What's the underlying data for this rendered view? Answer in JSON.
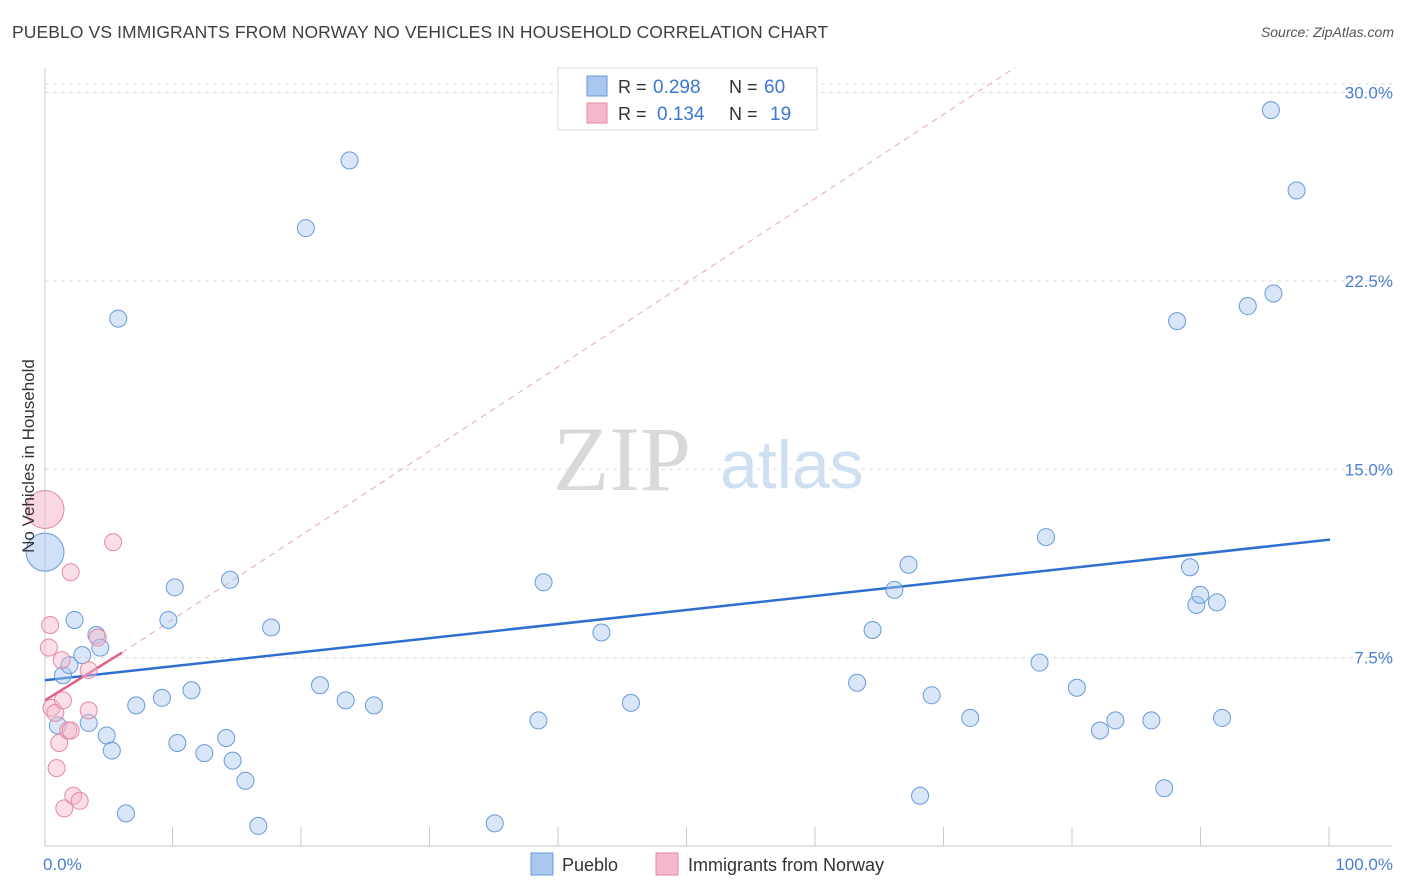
{
  "title": "PUEBLO VS IMMIGRANTS FROM NORWAY NO VEHICLES IN HOUSEHOLD CORRELATION CHART",
  "source": "Source: ZipAtlas.com",
  "watermark": {
    "part1": "ZIP",
    "part2": "atlas"
  },
  "legend_top": [
    {
      "r_label": "R =",
      "r_value": "0.298",
      "n_label": "N =",
      "n_value": "60",
      "color": "#a9c8f0"
    },
    {
      "r_label": "R =",
      "r_value": "0.134",
      "n_label": "N =",
      "n_value": "19",
      "color": "#f5b8cb"
    }
  ],
  "chart_data": {
    "type": "scatter",
    "ylabel": "No Vehicles in Household",
    "xlabel": "",
    "xlim": [
      0,
      100
    ],
    "ylim": [
      0,
      30.5
    ],
    "x_tick_labels": [
      {
        "value": 0,
        "label": "0.0%"
      },
      {
        "value": 100,
        "label": "100.0%"
      }
    ],
    "x_minor_ticks": [
      10,
      20,
      30,
      40,
      50,
      60,
      70,
      80,
      90,
      100
    ],
    "y_ticks": [
      {
        "value": 7.5,
        "label": "7.5%"
      },
      {
        "value": 15.0,
        "label": "15.0%"
      },
      {
        "value": 22.5,
        "label": "22.5%"
      },
      {
        "value": 30.0,
        "label": "30.0%"
      }
    ],
    "series": [
      {
        "name": "Pueblo",
        "color": "#a9c8f0",
        "stroke": "#6a9ad8",
        "points": [
          [
            0.0,
            11.7,
            "big"
          ],
          [
            1.0,
            4.8
          ],
          [
            1.4,
            6.8
          ],
          [
            1.9,
            7.2
          ],
          [
            2.3,
            9.0
          ],
          [
            2.9,
            7.6
          ],
          [
            3.4,
            4.9
          ],
          [
            4.0,
            8.4
          ],
          [
            4.3,
            7.9
          ],
          [
            4.8,
            4.4
          ],
          [
            5.2,
            3.8
          ],
          [
            5.7,
            21.0
          ],
          [
            6.3,
            1.3
          ],
          [
            7.1,
            5.6
          ],
          [
            9.1,
            5.9
          ],
          [
            9.6,
            9.0
          ],
          [
            10.1,
            10.3
          ],
          [
            10.3,
            4.1
          ],
          [
            11.4,
            6.2
          ],
          [
            12.4,
            3.7
          ],
          [
            14.1,
            4.3
          ],
          [
            14.4,
            10.6
          ],
          [
            14.6,
            3.4
          ],
          [
            15.6,
            2.6
          ],
          [
            16.6,
            0.8
          ],
          [
            17.6,
            8.7
          ],
          [
            20.3,
            24.6
          ],
          [
            21.4,
            6.4
          ],
          [
            23.4,
            5.8
          ],
          [
            23.7,
            27.3
          ],
          [
            25.6,
            5.6
          ],
          [
            35.0,
            0.9
          ],
          [
            38.4,
            5.0
          ],
          [
            38.8,
            10.5
          ],
          [
            43.3,
            8.5
          ],
          [
            45.6,
            5.7
          ],
          [
            63.2,
            6.5
          ],
          [
            64.4,
            8.6
          ],
          [
            66.1,
            10.2
          ],
          [
            67.2,
            11.2
          ],
          [
            68.1,
            2.0
          ],
          [
            69.0,
            6.0
          ],
          [
            72.0,
            5.1
          ],
          [
            77.4,
            7.3
          ],
          [
            77.9,
            12.3
          ],
          [
            80.3,
            6.3
          ],
          [
            82.1,
            4.6
          ],
          [
            83.3,
            5.0
          ],
          [
            86.1,
            5.0
          ],
          [
            87.1,
            2.3
          ],
          [
            88.1,
            20.9
          ],
          [
            89.1,
            11.1
          ],
          [
            89.6,
            9.6
          ],
          [
            89.9,
            10.0
          ],
          [
            91.2,
            9.7
          ],
          [
            91.6,
            5.1
          ],
          [
            93.6,
            21.5
          ],
          [
            95.4,
            29.3
          ],
          [
            95.6,
            22.0
          ],
          [
            97.4,
            26.1
          ]
        ]
      },
      {
        "name": "Immigrants from Norway",
        "color": "#f5b8cb",
        "stroke": "#e48aa6",
        "points": [
          [
            0.0,
            13.4,
            "big"
          ],
          [
            0.3,
            7.9
          ],
          [
            0.4,
            8.8
          ],
          [
            0.5,
            5.5
          ],
          [
            0.8,
            5.3
          ],
          [
            0.9,
            3.1
          ],
          [
            1.1,
            4.1
          ],
          [
            1.3,
            7.4
          ],
          [
            1.4,
            5.8
          ],
          [
            1.5,
            1.5
          ],
          [
            1.8,
            4.6
          ],
          [
            2.0,
            4.6
          ],
          [
            2.0,
            10.9
          ],
          [
            2.2,
            2.0
          ],
          [
            2.7,
            1.8
          ],
          [
            3.4,
            7.0
          ],
          [
            3.4,
            5.4
          ],
          [
            4.1,
            8.3
          ],
          [
            5.3,
            12.1
          ]
        ]
      }
    ],
    "trendlines": [
      {
        "series": "Pueblo",
        "x": [
          0,
          100
        ],
        "y": [
          6.6,
          12.2
        ],
        "style": "solid",
        "color": "#2f6fd0"
      },
      {
        "series": "Immigrants from Norway",
        "x": [
          0,
          6.0
        ],
        "y": [
          5.8,
          7.7
        ],
        "style": "solid",
        "color": "#e0608a"
      },
      {
        "series": "Immigrants from Norway",
        "x": [
          6.0,
          75.5
        ],
        "y": [
          7.7,
          31.0
        ],
        "style": "dashed",
        "color": "#eaa5bb"
      }
    ],
    "legend": [
      "Pueblo",
      "Immigrants from Norway"
    ]
  }
}
